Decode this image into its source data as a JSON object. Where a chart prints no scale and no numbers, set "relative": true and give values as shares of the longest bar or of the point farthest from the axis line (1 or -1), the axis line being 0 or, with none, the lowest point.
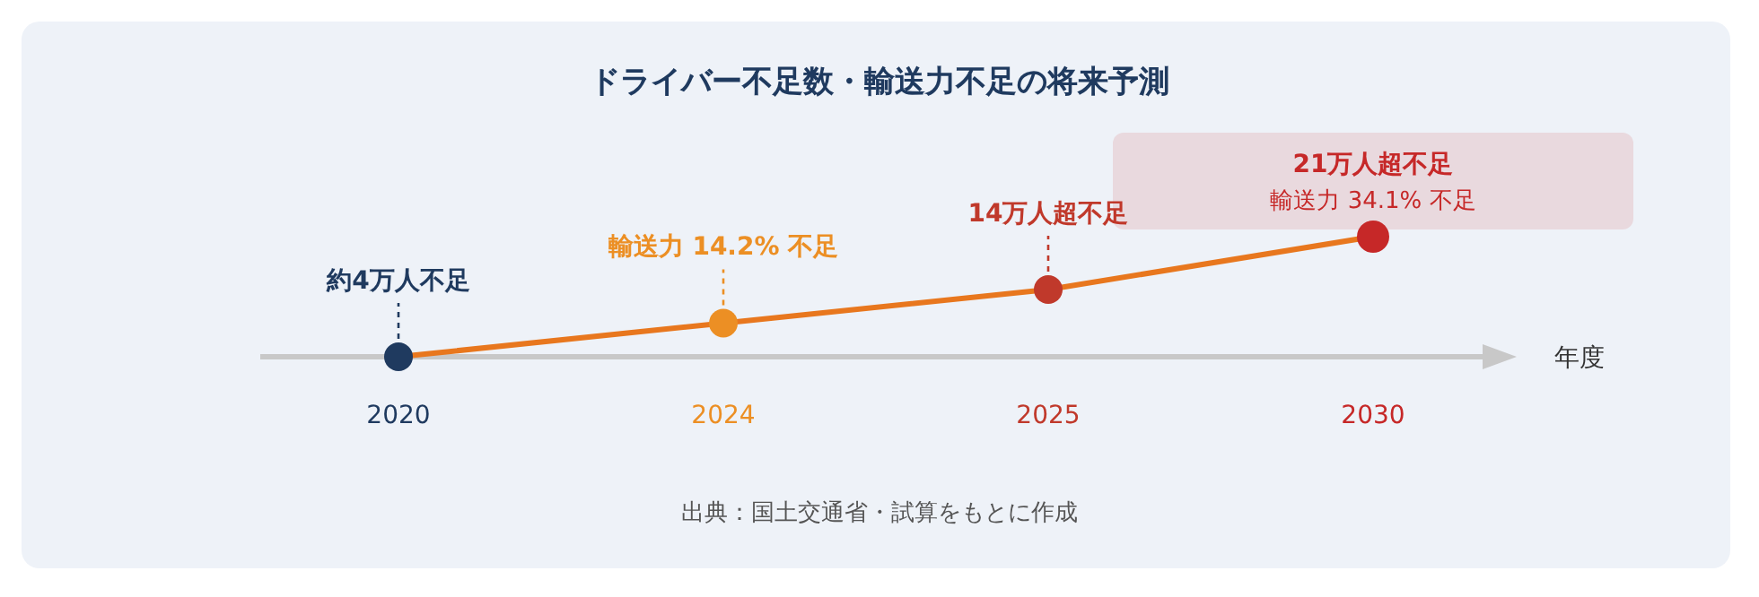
{
  "chart_data": {
    "type": "line",
    "title": "ドライバー不足数・輸送力不足の将来予測",
    "xlabel": "年度",
    "categories": [
      "2020",
      "2024",
      "2025",
      "2030"
    ],
    "relative": true,
    "marker": "circle",
    "series": [
      {
        "color": "#e8771e",
        "colors": [
          "#1f3a5f",
          "#ec8f24",
          "#c0392b",
          "#c62828"
        ],
        "values": [
          0,
          0.28,
          0.56,
          1
        ]
      }
    ],
    "annotations": [
      {
        "text": "約4万人不足",
        "x": "2020",
        "y": 0
      },
      {
        "text": "輸送力 14.2% 不足",
        "x": "2024",
        "y": 0.28
      },
      {
        "text": "14万人超不足",
        "x": "2025",
        "y": 0.56
      },
      {
        "text": "21万人超不足",
        "x": "2030",
        "y": 1
      },
      {
        "text": "輸送力 34.1% 不足",
        "x": "2030",
        "y": 1
      },
      "出典：国土交通省・試算をもとに作成"
    ]
  }
}
